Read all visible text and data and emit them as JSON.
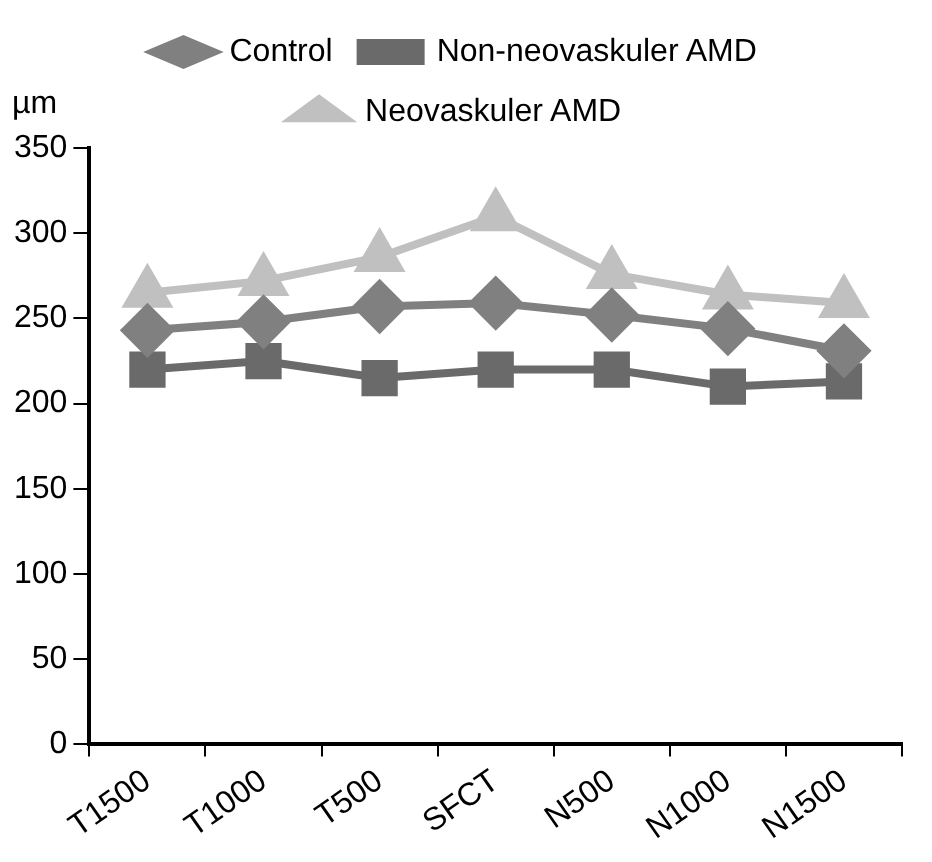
{
  "chart_data": {
    "type": "line",
    "ylabel": "µm",
    "categories": [
      "T1500",
      "T1000",
      "T500",
      "SFCT",
      "N500",
      "N1000",
      "N1500"
    ],
    "series": [
      {
        "name": "Control",
        "color": "#808080",
        "marker": "diamond",
        "values": [
          243,
          248,
          257,
          259,
          252,
          244,
          231
        ]
      },
      {
        "name": "Non-neovaskuler AMD",
        "color": "#6a6a6a",
        "marker": "square",
        "values": [
          220,
          225,
          215,
          220,
          220,
          210,
          213
        ]
      },
      {
        "name": "Neovaskuler AMD",
        "color": "#c0c0c0",
        "marker": "triangle",
        "values": [
          265,
          272,
          286,
          310,
          276,
          264,
          259
        ]
      }
    ],
    "ylim": [
      0,
      350
    ],
    "yticks": [
      0,
      50,
      100,
      150,
      200,
      250,
      300,
      350
    ],
    "grid": false,
    "legend": "top",
    "line_style": "solid"
  }
}
